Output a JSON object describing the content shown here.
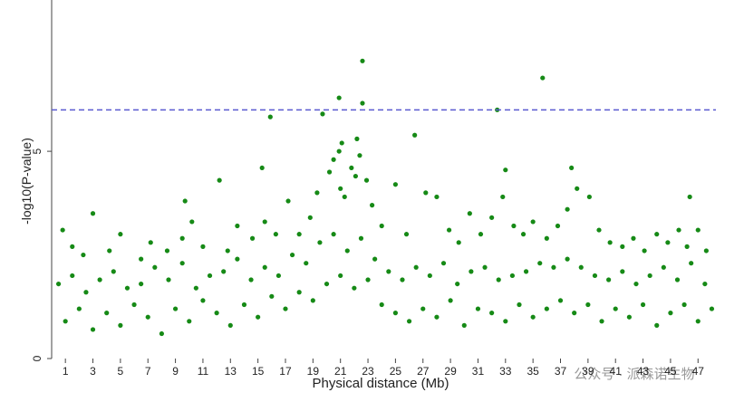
{
  "chart_data": {
    "type": "scatter",
    "xlabel": "Physical distance (Mb)",
    "ylabel": "-log10(P-value)",
    "color": "#168a16",
    "threshold": 6,
    "threshold_color": "#5a5ad0",
    "xlim": [
      0,
      48.3
    ],
    "ylim": [
      0,
      8.65
    ],
    "xticks": [
      1,
      3,
      5,
      7,
      9,
      11,
      13,
      15,
      17,
      19,
      21,
      23,
      25,
      27,
      29,
      31,
      33,
      35,
      37,
      39,
      41,
      43,
      45,
      47
    ],
    "yticks": [
      0,
      5
    ],
    "watermark": "公众号 · 派森诺生物",
    "x": [
      22.6,
      35.7,
      20.9,
      22.6,
      19.7,
      15.9,
      32.4,
      26.4,
      21.1,
      22.2,
      15.3,
      12.2,
      33.0,
      37.8,
      9.7,
      46.4,
      3.0,
      0.8,
      1.5,
      2.3,
      4.2,
      5.0,
      6.5,
      7.2,
      8.4,
      9.5,
      10.2,
      11.0,
      12.8,
      13.5,
      14.6,
      15.5,
      16.3,
      17.2,
      18.0,
      18.8,
      19.3,
      20.2,
      20.5,
      21.0,
      21.3,
      21.8,
      22.1,
      22.4,
      22.9,
      23.3,
      24.0,
      25.0,
      25.8,
      27.2,
      28.0,
      28.9,
      29.6,
      30.4,
      31.2,
      32.0,
      32.8,
      33.6,
      34.3,
      35.0,
      36.0,
      36.8,
      37.5,
      38.2,
      39.1,
      39.8,
      40.6,
      41.5,
      42.3,
      43.1,
      44.0,
      44.8,
      45.6,
      46.2,
      47.0,
      47.6,
      20.9,
      0.5,
      1.5,
      2.5,
      3.5,
      4.5,
      5.5,
      6.5,
      7.5,
      8.5,
      9.5,
      10.5,
      11.5,
      12.5,
      13.5,
      14.5,
      15.5,
      16.5,
      17.5,
      18.5,
      19.5,
      20.5,
      21.5,
      22.5,
      23.5,
      24.5,
      25.5,
      26.5,
      27.5,
      28.5,
      29.5,
      30.5,
      31.5,
      32.5,
      33.5,
      34.5,
      35.5,
      36.5,
      37.5,
      38.5,
      39.5,
      40.5,
      41.5,
      42.5,
      43.5,
      44.5,
      45.5,
      46.5,
      47.5,
      1,
      2,
      3,
      4,
      5,
      6,
      7,
      8,
      9,
      10,
      11,
      12,
      13,
      14,
      15,
      16,
      17,
      18,
      19,
      20,
      21,
      22,
      23,
      24,
      25,
      26,
      27,
      28,
      29,
      30,
      31,
      32,
      33,
      34,
      35,
      36,
      37,
      38,
      39,
      40,
      41,
      42,
      43,
      44,
      45,
      46,
      47,
      48
    ],
    "values": [
      7.18,
      6.77,
      6.29,
      6.16,
      5.9,
      5.83,
      6.0,
      5.39,
      5.2,
      5.3,
      4.6,
      4.3,
      4.55,
      4.6,
      3.8,
      3.9,
      3.5,
      3.1,
      2.7,
      2.5,
      2.6,
      3.0,
      2.4,
      2.8,
      2.6,
      2.9,
      3.3,
      2.7,
      2.6,
      3.2,
      2.9,
      3.3,
      3.0,
      3.8,
      3.0,
      3.4,
      4.0,
      4.5,
      4.8,
      4.1,
      3.9,
      4.6,
      4.4,
      4.9,
      4.3,
      3.7,
      3.2,
      4.2,
      3.0,
      4.0,
      3.9,
      3.1,
      2.8,
      3.5,
      3.0,
      3.4,
      3.9,
      3.2,
      3.0,
      3.3,
      2.9,
      3.2,
      3.6,
      4.1,
      3.9,
      3.1,
      2.8,
      2.7,
      2.9,
      2.6,
      3.0,
      2.8,
      3.1,
      2.7,
      3.1,
      2.6,
      5.0,
      1.8,
      2.0,
      1.6,
      1.9,
      2.1,
      1.7,
      1.8,
      2.2,
      1.9,
      2.3,
      1.7,
      2.0,
      2.1,
      2.4,
      1.9,
      2.2,
      2.0,
      2.5,
      2.3,
      2.8,
      3.0,
      2.6,
      2.9,
      2.4,
      2.1,
      1.9,
      2.2,
      2.0,
      2.3,
      1.8,
      2.1,
      2.2,
      1.9,
      2.0,
      2.1,
      2.3,
      2.2,
      2.4,
      2.2,
      2.0,
      1.9,
      2.1,
      1.8,
      2.0,
      2.2,
      1.9,
      2.3,
      1.8,
      0.9,
      1.2,
      0.7,
      1.1,
      0.8,
      1.3,
      1.0,
      0.6,
      1.2,
      0.9,
      1.4,
      1.1,
      0.8,
      1.3,
      1.0,
      1.5,
      1.2,
      1.6,
      1.4,
      1.8,
      2.0,
      1.7,
      1.9,
      1.3,
      1.1,
      0.9,
      1.2,
      1.0,
      1.4,
      0.8,
      1.2,
      1.1,
      0.9,
      1.3,
      1.0,
      1.2,
      1.4,
      1.1,
      1.3,
      0.9,
      1.2,
      1.0,
      1.3,
      0.8,
      1.1,
      1.3,
      0.9,
      1.2
    ]
  }
}
